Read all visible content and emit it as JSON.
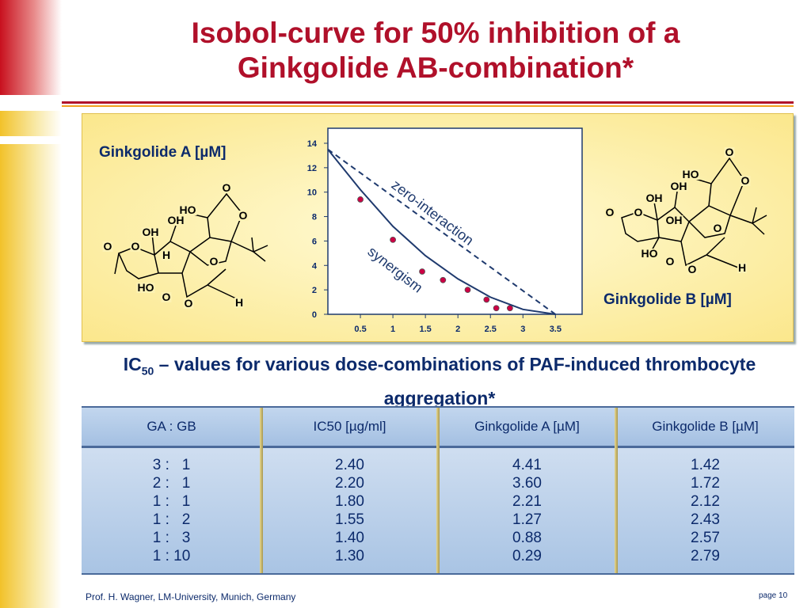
{
  "title": [
    "Isobol-curve for 50% inhibition of a",
    "Ginkgolide AB-combination*"
  ],
  "chart_data": {
    "type": "scatter",
    "xlim": [
      0,
      3.91
    ],
    "ylim": [
      0,
      15.23
    ],
    "xticks": [
      0.5,
      1,
      1.5,
      2,
      2.5,
      3,
      3.5
    ],
    "yticks": [
      0,
      2,
      4,
      6,
      8,
      10,
      12,
      14
    ],
    "series": [
      {
        "kind": "points",
        "color": "#cc0044",
        "x": [
          0.5,
          1.0,
          1.45,
          1.77,
          2.15,
          2.44,
          2.59,
          2.8
        ],
        "values": [
          9.4,
          6.1,
          3.5,
          2.8,
          2.0,
          1.2,
          0.5,
          0.5
        ]
      },
      {
        "kind": "line",
        "dashed": false,
        "color": "#1f3a6e",
        "x": [
          0,
          0.5,
          1,
          1.5,
          2,
          2.5,
          3,
          3.5
        ],
        "values": [
          13.5,
          10.2,
          7.2,
          4.8,
          2.9,
          1.4,
          0.4,
          0
        ]
      },
      {
        "kind": "line",
        "dashed": true,
        "color": "#1f3a6e",
        "x": [
          0,
          3.5
        ],
        "values": [
          13.5,
          0
        ]
      }
    ],
    "annotations": [
      "zero-interaction",
      "synergism"
    ]
  },
  "molecules": [
    {
      "label": "Ginkgolide A [µM]",
      "atoms": [
        "O",
        "HO",
        "O",
        "OH",
        "OH",
        "O",
        "O",
        "H",
        "O",
        "HO",
        "O",
        "O",
        "H"
      ]
    },
    {
      "label": "Ginkgolide B [µM]",
      "atoms": [
        "O",
        "HO",
        "OH",
        "O",
        "OH",
        "O",
        "O",
        "OH",
        "O",
        "HO",
        "O",
        "O",
        "H"
      ]
    }
  ],
  "subtitle": {
    "prefix": "IC",
    "subscript": "50",
    "text": " – values for various dose-combinations of PAF-induced thrombocyte aggregation*"
  },
  "table": {
    "header": [
      "GA : GB",
      "IC50 [µg/ml]",
      "Ginkgolide A [µM]",
      "Ginkgolide B [µM]"
    ],
    "rows": [
      [
        "3 :   1",
        "2.40",
        "4.41",
        "1.42"
      ],
      [
        "2 :   1",
        "2.20",
        "3.60",
        "1.72"
      ],
      [
        "1 :   1",
        "1.80",
        "2.21",
        "2.12"
      ],
      [
        "1 :   2",
        "1.55",
        "1.27",
        "2.43"
      ],
      [
        "1 :   3",
        "1.40",
        "0.88",
        "2.57"
      ],
      [
        "1 : 10",
        "1.30",
        "0.29",
        "2.79"
      ]
    ]
  },
  "footer": {
    "author": "Prof. H. Wagner, LM-University, Munich, Germany",
    "page": "page 10"
  }
}
